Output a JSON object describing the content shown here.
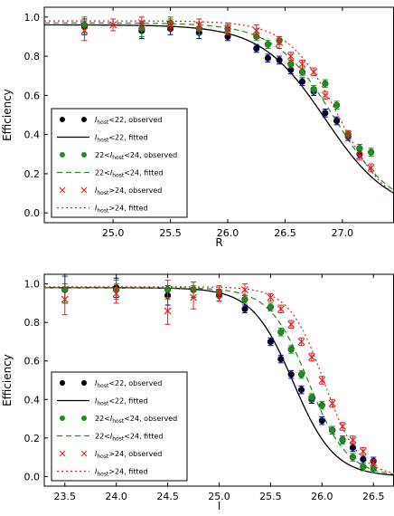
{
  "chart_data": [
    {
      "type": "scatter",
      "xlabel": "R",
      "ylabel": "Efficiency",
      "xlim": [
        24.4,
        27.45
      ],
      "ylim": [
        -0.05,
        1.05
      ],
      "xticks": [
        "25.0",
        "25.5",
        "26.0",
        "26.5",
        "27.0"
      ],
      "xtick_values": [
        25.0,
        25.5,
        26.0,
        26.5,
        27.0
      ],
      "yticks": [
        "0.0",
        "0.2",
        "0.4",
        "0.6",
        "0.8",
        "1.0"
      ],
      "ytick_values": [
        0.0,
        0.2,
        0.4,
        0.6,
        0.8,
        1.0
      ],
      "legend_position": "lower-left",
      "series": [
        {
          "name": "I_host<22, observed",
          "kind": "points",
          "color": "#000000",
          "marker": "circle",
          "errorbar_color": "#00008b",
          "x": [
            24.75,
            25.25,
            25.5,
            25.75,
            26.0,
            26.25,
            26.35,
            26.45,
            26.55,
            26.65,
            26.75,
            26.85,
            26.95,
            27.05,
            27.15
          ],
          "y": [
            0.95,
            0.93,
            0.94,
            0.92,
            0.9,
            0.84,
            0.79,
            0.78,
            0.73,
            0.67,
            0.62,
            0.51,
            0.47,
            0.39,
            0.3
          ],
          "err": [
            0.04,
            0.04,
            0.03,
            0.03,
            0.02,
            0.02,
            0.02,
            0.02,
            0.02,
            0.02,
            0.02,
            0.02,
            0.02,
            0.02,
            0.02
          ]
        },
        {
          "name": "I_host<22, fitted",
          "kind": "curve",
          "color": "#000000",
          "dash": "solid",
          "a": 0.96,
          "x50": 26.85,
          "b": 0.28
        },
        {
          "name": "22<I_host<24, observed",
          "kind": "points",
          "color": "#228b22",
          "marker": "circle",
          "errorbar_color": "#228b22",
          "x": [
            24.75,
            25.25,
            25.5,
            25.75,
            26.0,
            26.25,
            26.35,
            26.45,
            26.55,
            26.65,
            26.75,
            26.85,
            26.95,
            27.05,
            27.15,
            27.25
          ],
          "y": [
            0.96,
            0.94,
            0.97,
            0.94,
            0.94,
            0.9,
            0.86,
            0.88,
            0.76,
            0.72,
            0.63,
            0.66,
            0.55,
            0.4,
            0.33,
            0.31
          ],
          "err": [
            0.04,
            0.04,
            0.03,
            0.03,
            0.02,
            0.02,
            0.02,
            0.02,
            0.02,
            0.02,
            0.02,
            0.02,
            0.02,
            0.02,
            0.02,
            0.02
          ]
        },
        {
          "name": "22<I_host<24, fitted",
          "kind": "curve",
          "color": "#228b22",
          "dash": "long",
          "a": 0.97,
          "x50": 26.93,
          "b": 0.26
        },
        {
          "name": "I_host>24, observed",
          "kind": "points",
          "color": "#dd2222",
          "marker": "x",
          "errorbar_color": "#dd2222",
          "x": [
            24.75,
            25.0,
            25.25,
            25.5,
            25.75,
            26.0,
            26.25,
            26.45,
            26.55,
            26.65,
            26.75,
            26.85,
            27.05,
            27.15,
            27.25
          ],
          "y": [
            0.93,
            0.96,
            0.97,
            0.96,
            0.96,
            0.94,
            0.93,
            0.87,
            0.8,
            0.76,
            0.72,
            0.6,
            0.4,
            0.29,
            0.23
          ],
          "err": [
            0.05,
            0.03,
            0.03,
            0.03,
            0.03,
            0.03,
            0.03,
            0.03,
            0.02,
            0.02,
            0.02,
            0.02,
            0.02,
            0.02,
            0.02
          ]
        },
        {
          "name": "I_host>24, fitted",
          "kind": "curve",
          "color": "#dd2222",
          "dash": "dotted",
          "a": 0.98,
          "x50": 26.97,
          "b": 0.22
        }
      ]
    },
    {
      "type": "scatter",
      "xlabel": "I",
      "ylabel": "Efficiency",
      "xlim": [
        23.3,
        26.7
      ],
      "ylim": [
        -0.05,
        1.05
      ],
      "xticks": [
        "23.5",
        "24.0",
        "24.5",
        "25.0",
        "25.5",
        "26.0",
        "26.5"
      ],
      "xtick_values": [
        23.5,
        24.0,
        24.5,
        25.0,
        25.5,
        26.0,
        26.5
      ],
      "yticks": [
        "0.0",
        "0.2",
        "0.4",
        "0.6",
        "0.8",
        "1.0"
      ],
      "ytick_values": [
        0.0,
        0.2,
        0.4,
        0.6,
        0.8,
        1.0
      ],
      "legend_position": "lower-left",
      "series": [
        {
          "name": "I_host<22, observed",
          "kind": "points",
          "color": "#000000",
          "marker": "circle",
          "errorbar_color": "#00008b",
          "x": [
            23.5,
            24.0,
            24.5,
            24.75,
            25.0,
            25.25,
            25.5,
            25.6,
            25.7,
            25.8,
            25.9,
            26.0,
            26.1,
            26.2,
            26.3,
            26.4,
            26.5
          ],
          "y": [
            0.97,
            0.98,
            0.94,
            0.97,
            0.94,
            0.87,
            0.7,
            0.61,
            0.53,
            0.45,
            0.4,
            0.29,
            0.24,
            0.19,
            0.15,
            0.09,
            0.08
          ],
          "err": [
            0.07,
            0.05,
            0.05,
            0.04,
            0.03,
            0.02,
            0.02,
            0.02,
            0.02,
            0.02,
            0.02,
            0.02,
            0.02,
            0.02,
            0.02,
            0.02,
            0.02
          ]
        },
        {
          "name": "I_host<22, fitted",
          "kind": "curve",
          "color": "#000000",
          "dash": "solid",
          "a": 0.98,
          "x50": 25.72,
          "b": 0.2
        },
        {
          "name": "22<I_host<24, observed",
          "kind": "points",
          "color": "#228b22",
          "marker": "circle",
          "errorbar_color": "#228b22",
          "x": [
            23.5,
            24.0,
            24.5,
            24.75,
            25.0,
            25.25,
            25.5,
            25.6,
            25.7,
            25.8,
            25.9,
            26.0,
            26.1,
            26.2,
            26.3,
            26.4,
            26.5
          ],
          "y": [
            0.97,
            0.97,
            0.97,
            0.97,
            0.96,
            0.92,
            0.88,
            0.75,
            0.66,
            0.53,
            0.41,
            0.37,
            0.24,
            0.19,
            0.1,
            0.05,
            0.04
          ],
          "err": [
            0.07,
            0.05,
            0.05,
            0.04,
            0.03,
            0.02,
            0.02,
            0.02,
            0.02,
            0.02,
            0.02,
            0.02,
            0.02,
            0.02,
            0.02,
            0.02,
            0.02
          ]
        },
        {
          "name": "22<I_host<24, fitted",
          "kind": "curve",
          "color": "#228b22",
          "dash": "long",
          "a": 0.98,
          "x50": 25.87,
          "b": 0.19
        },
        {
          "name": "I_host>24, observed",
          "kind": "points",
          "color": "#dd2222",
          "marker": "x",
          "errorbar_color": "#dd2222",
          "x": [
            23.5,
            24.0,
            24.5,
            24.75,
            25.0,
            25.25,
            25.5,
            25.6,
            25.7,
            25.8,
            25.9,
            26.0,
            26.1,
            26.2,
            26.3,
            26.4,
            26.5
          ],
          "y": [
            0.92,
            0.95,
            0.86,
            0.93,
            0.95,
            0.97,
            0.93,
            0.87,
            0.79,
            0.7,
            0.62,
            0.5,
            0.38,
            0.26,
            0.19,
            0.13,
            0.07
          ],
          "err": [
            0.08,
            0.05,
            0.07,
            0.06,
            0.04,
            0.03,
            0.02,
            0.02,
            0.02,
            0.02,
            0.02,
            0.02,
            0.02,
            0.02,
            0.02,
            0.02,
            0.02
          ]
        },
        {
          "name": "I_host>24, fitted",
          "kind": "curve",
          "color": "#dd2222",
          "dash": "dotted",
          "a": 0.985,
          "x50": 26.02,
          "b": 0.17
        }
      ]
    }
  ],
  "legend": [
    {
      "label": "I_host<22, observed",
      "base": "I",
      "sub": "host",
      "pre": "",
      "post": "<22, observed",
      "symbol": "dot",
      "color": "#000000"
    },
    {
      "label": "I_host<22, fitted",
      "base": "I",
      "sub": "host",
      "pre": "",
      "post": "<22, fitted",
      "symbol": "solid",
      "color": "#000000"
    },
    {
      "label": "22<I_host<24, observed",
      "base": "I",
      "sub": "host",
      "pre": "22<",
      "post": "<24, observed",
      "symbol": "dot",
      "color": "#228b22"
    },
    {
      "label": "22<I_host<24, fitted",
      "base": "I",
      "sub": "host",
      "pre": "22<",
      "post": "<24, fitted",
      "symbol": "long",
      "color": "#228b22"
    },
    {
      "label": "I_host>24, observed",
      "base": "I",
      "sub": "host",
      "pre": "",
      "post": ">24, observed",
      "symbol": "x",
      "color": "#dd2222"
    },
    {
      "label": "I_host>24, fitted",
      "base": "I",
      "sub": "host",
      "pre": "",
      "post": ">24, fitted",
      "symbol": "dotted",
      "color": "#dd2222"
    }
  ]
}
